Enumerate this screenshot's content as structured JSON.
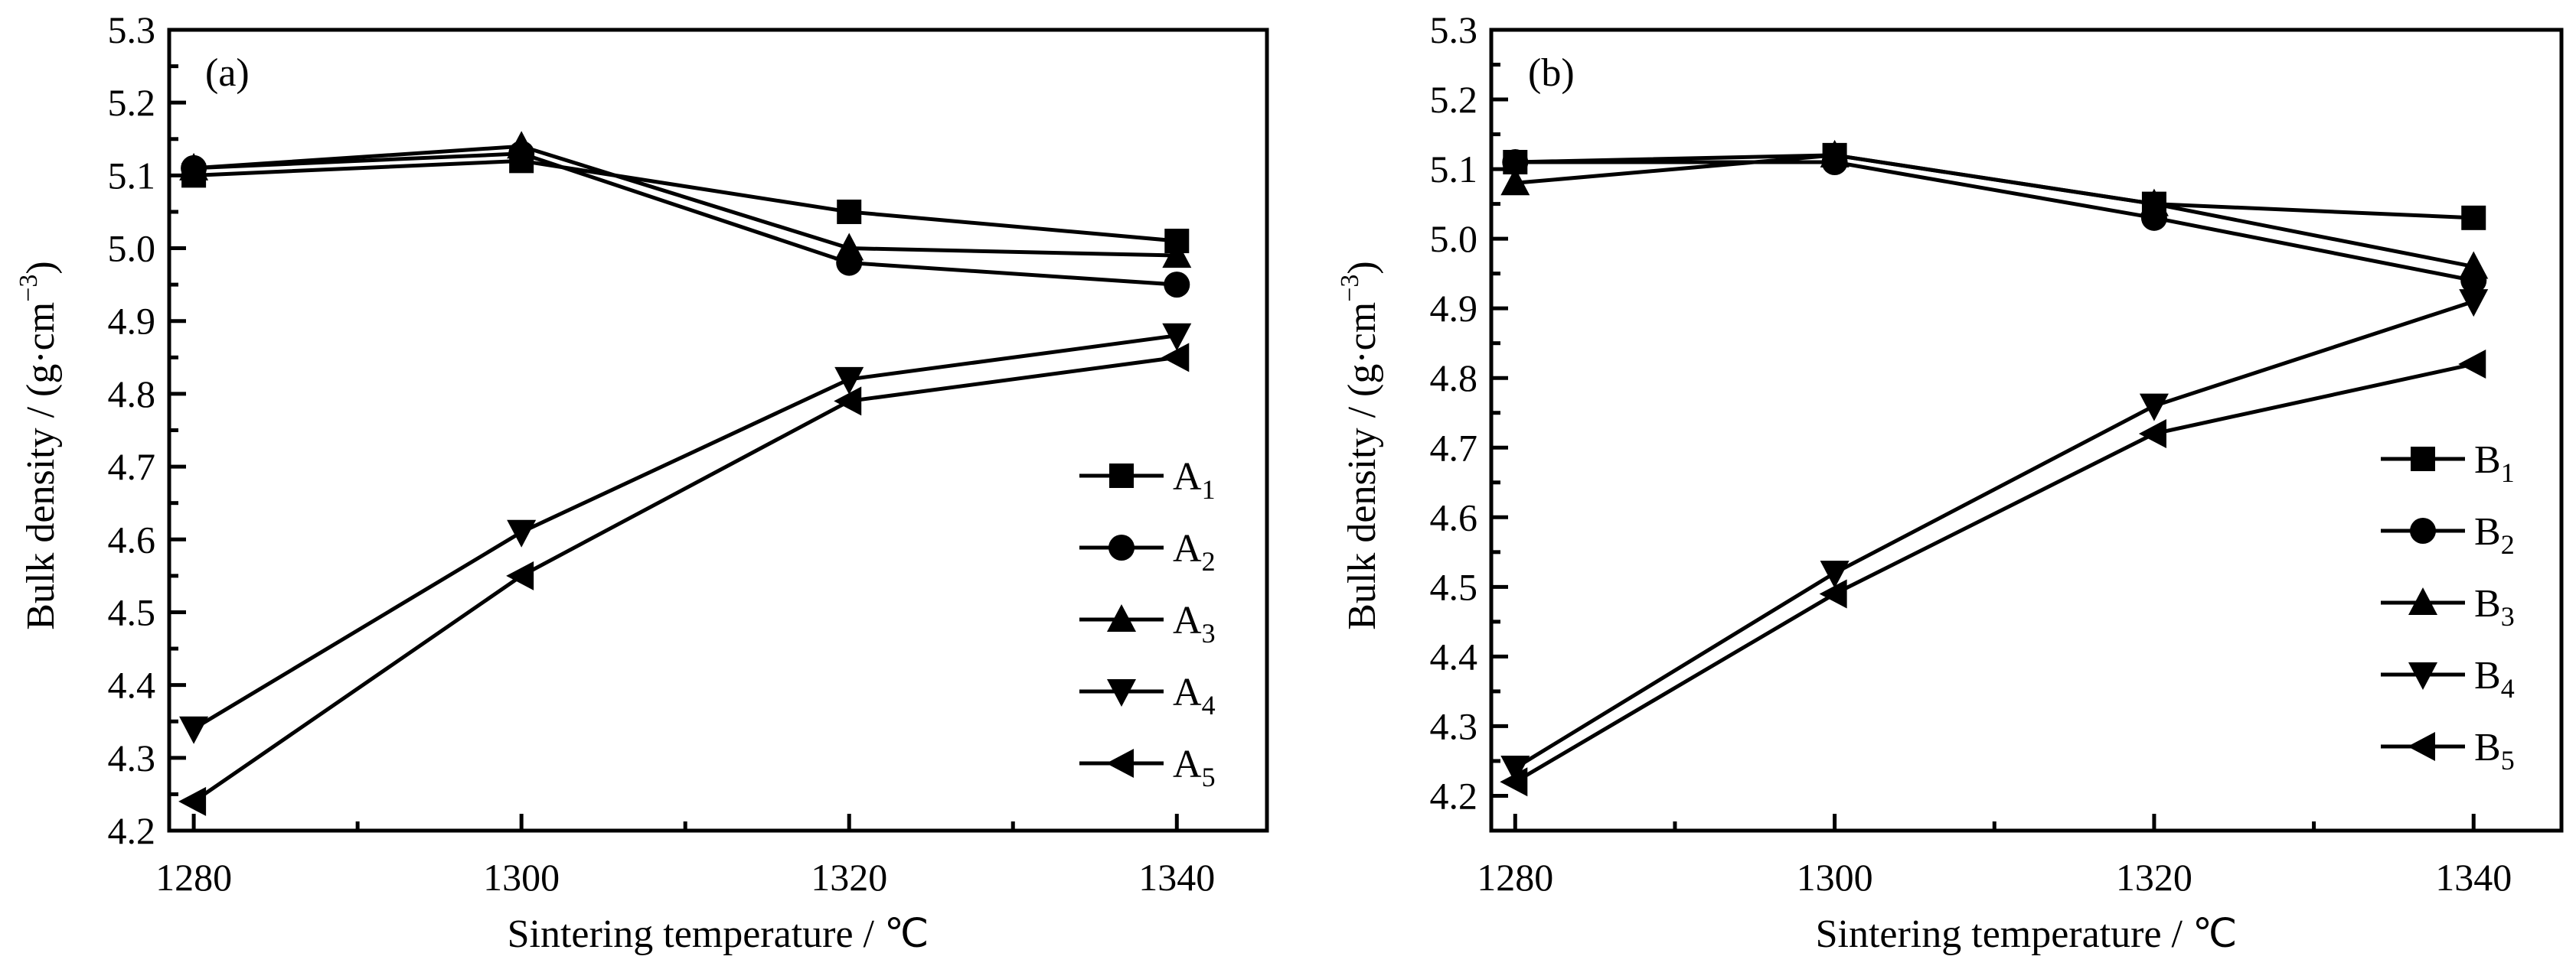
{
  "chart_data": [
    {
      "type": "line",
      "panel_label": "(a)",
      "xlabel": "Sintering temperature / ℃",
      "ylabel": "Bulk density / (g·cm",
      "ylabel_sup": "−3",
      "ylabel_close": ")",
      "xlim": [
        1278.5,
        1345.5
      ],
      "ylim": [
        4.2,
        5.3
      ],
      "xticks": [
        1280,
        1300,
        1320,
        1340
      ],
      "xtick_labels": [
        "1280",
        "1300",
        "1320",
        "1340"
      ],
      "yticks": [
        4.2,
        4.3,
        4.4,
        4.5,
        4.6,
        4.7,
        4.8,
        4.9,
        5.0,
        5.1,
        5.2,
        5.3
      ],
      "ytick_labels": [
        "4.2",
        "4.3",
        "4.4",
        "4.5",
        "4.6",
        "4.7",
        "4.8",
        "4.9",
        "5.0",
        "5.1",
        "5.2",
        "5.3"
      ],
      "grid": false,
      "legend_position": "bottom-right",
      "x": [
        1280,
        1300,
        1320,
        1340
      ],
      "series": [
        {
          "name": "A",
          "sub": "1",
          "marker": "square",
          "values": [
            5.1,
            5.12,
            5.05,
            5.01
          ]
        },
        {
          "name": "A",
          "sub": "2",
          "marker": "circle",
          "values": [
            5.11,
            5.13,
            4.98,
            4.95
          ]
        },
        {
          "name": "A",
          "sub": "3",
          "marker": "triangle-up",
          "values": [
            5.11,
            5.14,
            5.0,
            4.99
          ]
        },
        {
          "name": "A",
          "sub": "4",
          "marker": "triangle-down",
          "values": [
            4.34,
            4.61,
            4.82,
            4.88
          ]
        },
        {
          "name": "A",
          "sub": "5",
          "marker": "triangle-left",
          "values": [
            4.24,
            4.55,
            4.79,
            4.85
          ]
        }
      ]
    },
    {
      "type": "line",
      "panel_label": "(b)",
      "xlabel": "Sintering temperature / ℃",
      "ylabel": "Bulk density / (g·cm",
      "ylabel_sup": "−3",
      "ylabel_close": ")",
      "xlim": [
        1278.5,
        1345.5
      ],
      "ylim": [
        4.15,
        5.3
      ],
      "xticks": [
        1280,
        1300,
        1320,
        1340
      ],
      "xtick_labels": [
        "1280",
        "1300",
        "1320",
        "1340"
      ],
      "yticks": [
        4.2,
        4.3,
        4.4,
        4.5,
        4.6,
        4.7,
        4.8,
        4.9,
        5.0,
        5.1,
        5.2,
        5.3
      ],
      "ytick_labels": [
        "4.2",
        "4.3",
        "4.4",
        "4.5",
        "4.6",
        "4.7",
        "4.8",
        "4.9",
        "5.0",
        "5.1",
        "5.2",
        "5.3"
      ],
      "grid": false,
      "legend_position": "bottom-right",
      "x": [
        1280,
        1300,
        1320,
        1340
      ],
      "series": [
        {
          "name": "B",
          "sub": "1",
          "marker": "square",
          "values": [
            5.11,
            5.12,
            5.05,
            5.03
          ]
        },
        {
          "name": "B",
          "sub": "2",
          "marker": "circle",
          "values": [
            5.11,
            5.11,
            5.03,
            4.94
          ]
        },
        {
          "name": "B",
          "sub": "3",
          "marker": "triangle-up",
          "values": [
            5.08,
            5.12,
            5.05,
            4.96
          ]
        },
        {
          "name": "B",
          "sub": "4",
          "marker": "triangle-down",
          "values": [
            4.24,
            4.52,
            4.76,
            4.91
          ]
        },
        {
          "name": "B",
          "sub": "5",
          "marker": "triangle-left",
          "values": [
            4.22,
            4.49,
            4.72,
            4.82
          ]
        }
      ]
    }
  ]
}
